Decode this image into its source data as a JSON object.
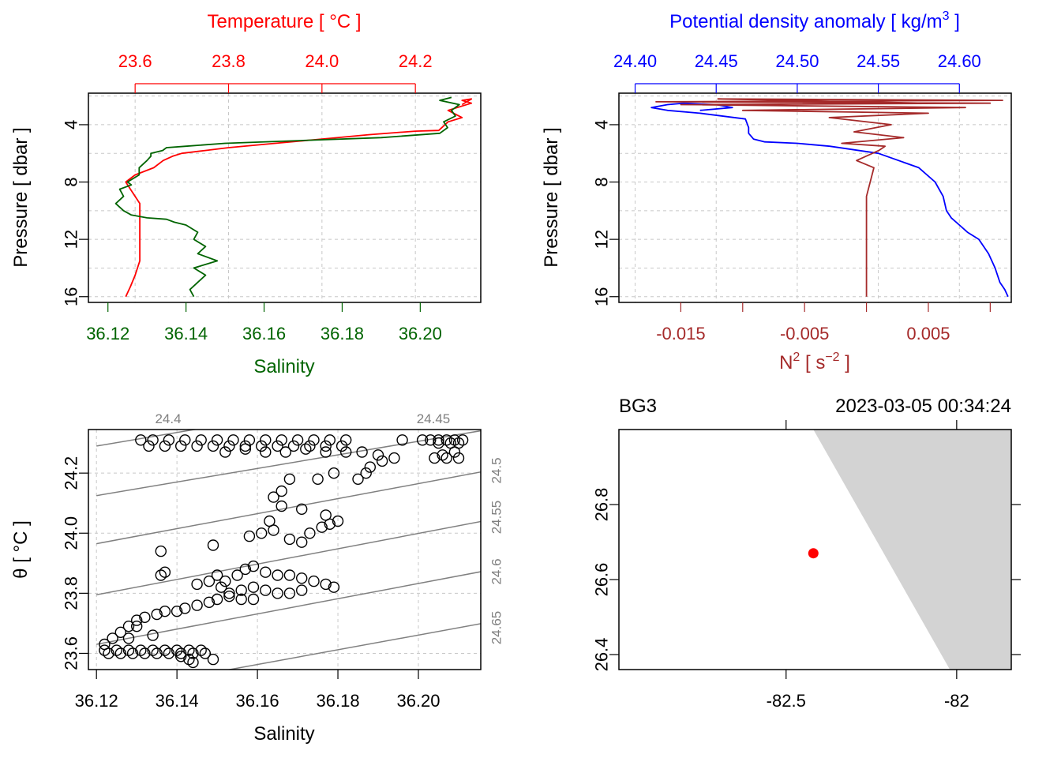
{
  "colors": {
    "temperature": "#ff0000",
    "salinity": "#006400",
    "density": "#0000ff",
    "n2": "#a52a2a",
    "land": "#d3d3d3",
    "station": "#ff0000",
    "isopycnal": "#808080"
  },
  "chart_data": [
    {
      "type": "line",
      "panel": "top-left",
      "ylabel": "Pressure [ dbar ]",
      "ylim": [
        16.4,
        1.8
      ],
      "yticks": [
        4,
        8,
        12,
        16
      ],
      "top_axis": {
        "label": "Temperature [ °C ]",
        "range": [
          23.5,
          24.34
        ],
        "ticks": [
          23.6,
          23.8,
          24.0,
          24.2
        ],
        "tick_labels": [
          "23.6",
          "23.8",
          "24.0",
          "24.2"
        ]
      },
      "bottom_axis": {
        "label": "Salinity",
        "range": [
          36.115,
          36.2155
        ],
        "ticks": [
          36.12,
          36.14,
          36.16,
          36.18,
          36.2
        ],
        "tick_labels": [
          "36.12",
          "36.14",
          "36.16",
          "36.18",
          "36.20"
        ]
      },
      "series": [
        {
          "name": "Temperature",
          "x": [
            23.58,
            23.59,
            23.6,
            23.61,
            23.61,
            23.61,
            23.61,
            23.61,
            23.61,
            23.6,
            23.59,
            23.58,
            23.6,
            23.64,
            23.66,
            23.68,
            23.7,
            23.75,
            23.8,
            23.9,
            24.0,
            24.1,
            24.2,
            24.25,
            24.27,
            24.3,
            24.27,
            24.3,
            24.32,
            24.3,
            24.32,
            24.3
          ],
          "y": [
            16,
            15.3,
            14.5,
            13.5,
            12.5,
            11.5,
            10.5,
            10,
            9.5,
            9,
            8.5,
            8,
            7.5,
            7,
            6.5,
            6.2,
            6,
            5.8,
            5.6,
            5.3,
            5.0,
            4.7,
            4.45,
            4.4,
            3.8,
            3.5,
            3.0,
            2.7,
            2.5,
            2.3,
            2.2,
            2.6
          ]
        },
        {
          "name": "Salinity",
          "x": [
            36.142,
            36.141,
            36.143,
            36.145,
            36.142,
            36.148,
            36.143,
            36.145,
            36.142,
            36.143,
            36.14,
            36.137,
            36.135,
            36.13,
            36.126,
            36.124,
            36.122,
            36.124,
            36.123,
            36.126,
            36.125,
            36.128,
            36.128,
            36.13,
            36.131,
            36.131,
            36.134,
            36.135,
            36.14,
            36.15,
            36.17,
            36.19,
            36.205,
            36.207,
            36.206,
            36.209,
            36.208,
            36.21,
            36.205,
            36.208
          ],
          "y": [
            16,
            15.5,
            15,
            14.5,
            14,
            13.5,
            13,
            12.5,
            12,
            11.5,
            11,
            10.8,
            10.6,
            10.5,
            10.3,
            10,
            9.5,
            9,
            8.5,
            8.2,
            8,
            7.5,
            7,
            6.5,
            6.2,
            6,
            5.8,
            5.6,
            5.5,
            5.3,
            5.1,
            4.9,
            4.6,
            4.2,
            3.8,
            3.4,
            3.0,
            2.6,
            2.3,
            2.1
          ]
        }
      ]
    },
    {
      "type": "line",
      "panel": "top-right",
      "ylabel": "Pressure [ dbar ]",
      "ylim": [
        16.4,
        1.8
      ],
      "yticks": [
        4,
        8,
        12,
        16
      ],
      "top_axis": {
        "label": "Potential density anomaly [ kg/m",
        "label_sup": "3",
        "label_end": " ]",
        "range": [
          24.39,
          24.632
        ],
        "ticks": [
          24.4,
          24.45,
          24.5,
          24.55,
          24.6
        ],
        "tick_labels": [
          "24.40",
          "24.45",
          "24.50",
          "24.55",
          "24.60"
        ]
      },
      "bottom_axis": {
        "label": "N",
        "label_sup": "2",
        "label_mid": " [ s",
        "label_sup2": "−2",
        "label_end": " ]",
        "range": [
          -0.02,
          0.0117
        ],
        "ticks": [
          -0.015,
          -0.01,
          -0.005,
          0,
          0.005,
          0.01
        ],
        "tick_labels": [
          "-0.015",
          "",
          "-0.005",
          "",
          "0.005",
          ""
        ]
      },
      "series": [
        {
          "name": "Potential density anomaly",
          "x": [
            24.63,
            24.628,
            24.625,
            24.622,
            24.618,
            24.612,
            24.605,
            24.6,
            24.595,
            24.592,
            24.59,
            24.585,
            24.575,
            24.55,
            24.52,
            24.5,
            24.48,
            24.473,
            24.47,
            24.47,
            24.468,
            24.44,
            24.42,
            24.41,
            24.42,
            24.43,
            24.45,
            24.46,
            24.44
          ],
          "y": [
            16,
            15.5,
            15,
            14,
            13,
            12,
            11.5,
            11,
            10.5,
            10,
            9,
            8,
            7,
            6,
            5.5,
            5.3,
            5.2,
            5.0,
            4.6,
            4.2,
            3.6,
            3.2,
            3.0,
            2.8,
            2.6,
            2.5,
            2.6,
            2.8,
            3.0
          ]
        },
        {
          "name": "N2",
          "x": [
            0,
            0,
            0,
            0,
            0,
            0,
            0,
            0,
            0.0006,
            -0.0008,
            0.001,
            0.0015,
            -0.002,
            0.003,
            -0.001,
            0.002,
            -0.003,
            0.005,
            -0.01,
            0.008,
            -0.015,
            0.01,
            -0.017,
            0.011,
            -0.012,
            0.005
          ],
          "y": [
            16,
            15,
            14,
            13,
            12,
            11,
            10,
            9,
            7,
            6.5,
            5.8,
            5.5,
            5.3,
            4.9,
            4.5,
            4.0,
            3.5,
            3.2,
            3.0,
            2.8,
            2.6,
            2.5,
            2.4,
            2.3,
            2.2,
            2.5
          ]
        }
      ]
    },
    {
      "type": "scatter",
      "panel": "bottom-left",
      "xlabel": "Salinity",
      "ylabel": "θ [ °C ]",
      "xlim": [
        36.118,
        36.2155
      ],
      "ylim": [
        23.546,
        24.345
      ],
      "xticks": [
        36.12,
        36.14,
        36.16,
        36.18,
        36.2
      ],
      "xtick_labels": [
        "36.12",
        "36.14",
        "36.16",
        "36.18",
        "36.20"
      ],
      "yticks": [
        23.6,
        23.8,
        24.0,
        24.2
      ],
      "ytick_labels": [
        "23.6",
        "23.8",
        "24.0",
        "24.2"
      ],
      "isopycnal_labels": [
        "24.4",
        "24.45",
        "24.5",
        "24.55",
        "24.6",
        "24.65"
      ],
      "isopycnals": [
        {
          "sigma": "24.4",
          "s0": 36.12,
          "t0": 24.29,
          "s1": 36.216,
          "t1": 24.507
        },
        {
          "sigma": "24.45",
          "s0": 36.12,
          "t0": 24.125,
          "s1": 36.216,
          "t1": 24.342
        },
        {
          "sigma": "24.5",
          "s0": 36.12,
          "t0": 23.965,
          "s1": 36.216,
          "t1": 24.205
        },
        {
          "sigma": "24.55",
          "s0": 36.12,
          "t0": 23.795,
          "s1": 36.216,
          "t1": 24.04
        },
        {
          "sigma": "24.6",
          "s0": 36.12,
          "t0": 23.63,
          "s1": 36.216,
          "t1": 23.873
        },
        {
          "sigma": "24.65",
          "s0": 36.12,
          "t0": 23.465,
          "s1": 36.216,
          "t1": 23.7
        }
      ],
      "points": [
        [
          36.131,
          24.31
        ],
        [
          36.134,
          24.31
        ],
        [
          36.138,
          24.31
        ],
        [
          36.142,
          24.31
        ],
        [
          36.146,
          24.31
        ],
        [
          36.15,
          24.31
        ],
        [
          36.154,
          24.31
        ],
        [
          36.158,
          24.31
        ],
        [
          36.162,
          24.31
        ],
        [
          36.166,
          24.31
        ],
        [
          36.17,
          24.31
        ],
        [
          36.174,
          24.31
        ],
        [
          36.178,
          24.31
        ],
        [
          36.182,
          24.31
        ],
        [
          36.133,
          24.29
        ],
        [
          36.137,
          24.29
        ],
        [
          36.141,
          24.29
        ],
        [
          36.145,
          24.29
        ],
        [
          36.149,
          24.29
        ],
        [
          36.153,
          24.29
        ],
        [
          36.157,
          24.29
        ],
        [
          36.161,
          24.29
        ],
        [
          36.165,
          24.29
        ],
        [
          36.169,
          24.29
        ],
        [
          36.173,
          24.29
        ],
        [
          36.177,
          24.29
        ],
        [
          36.181,
          24.29
        ],
        [
          36.152,
          24.27
        ],
        [
          36.157,
          24.28
        ],
        [
          36.162,
          24.27
        ],
        [
          36.167,
          24.27
        ],
        [
          36.172,
          24.28
        ],
        [
          36.177,
          24.27
        ],
        [
          36.182,
          24.27
        ],
        [
          36.186,
          24.27
        ],
        [
          36.19,
          24.26
        ],
        [
          36.194,
          24.25
        ],
        [
          36.196,
          24.31
        ],
        [
          36.201,
          24.31
        ],
        [
          36.203,
          24.31
        ],
        [
          36.205,
          24.31
        ],
        [
          36.207,
          24.31
        ],
        [
          36.209,
          24.31
        ],
        [
          36.211,
          24.31
        ],
        [
          36.205,
          24.3
        ],
        [
          36.208,
          24.3
        ],
        [
          36.21,
          24.3
        ],
        [
          36.204,
          24.25
        ],
        [
          36.207,
          24.25
        ],
        [
          36.21,
          24.25
        ],
        [
          36.206,
          24.26
        ],
        [
          36.209,
          24.27
        ],
        [
          36.191,
          24.24
        ],
        [
          36.188,
          24.22
        ],
        [
          36.187,
          24.2
        ],
        [
          36.185,
          24.18
        ],
        [
          36.179,
          24.2
        ],
        [
          36.175,
          24.18
        ],
        [
          36.168,
          24.18
        ],
        [
          36.166,
          24.14
        ],
        [
          36.164,
          24.12
        ],
        [
          36.166,
          24.09
        ],
        [
          36.171,
          24.08
        ],
        [
          36.163,
          24.04
        ],
        [
          36.164,
          24.01
        ],
        [
          36.161,
          24.0
        ],
        [
          36.158,
          23.99
        ],
        [
          36.168,
          23.98
        ],
        [
          36.171,
          23.97
        ],
        [
          36.173,
          24.0
        ],
        [
          36.176,
          24.02
        ],
        [
          36.178,
          24.03
        ],
        [
          36.18,
          24.04
        ],
        [
          36.177,
          24.06
        ],
        [
          36.136,
          23.94
        ],
        [
          36.149,
          23.96
        ],
        [
          36.136,
          23.86
        ],
        [
          36.137,
          23.87
        ],
        [
          36.15,
          23.86
        ],
        [
          36.152,
          23.84
        ],
        [
          36.155,
          23.86
        ],
        [
          36.157,
          23.88
        ],
        [
          36.159,
          23.89
        ],
        [
          36.162,
          23.87
        ],
        [
          36.165,
          23.86
        ],
        [
          36.168,
          23.86
        ],
        [
          36.171,
          23.85
        ],
        [
          36.174,
          23.84
        ],
        [
          36.177,
          23.83
        ],
        [
          36.179,
          23.82
        ],
        [
          36.145,
          23.83
        ],
        [
          36.148,
          23.84
        ],
        [
          36.151,
          23.82
        ],
        [
          36.153,
          23.8
        ],
        [
          36.156,
          23.81
        ],
        [
          36.159,
          23.82
        ],
        [
          36.162,
          23.81
        ],
        [
          36.165,
          23.8
        ],
        [
          36.168,
          23.8
        ],
        [
          36.171,
          23.81
        ],
        [
          36.15,
          23.78
        ],
        [
          36.153,
          23.79
        ],
        [
          36.156,
          23.78
        ],
        [
          36.159,
          23.78
        ],
        [
          36.148,
          23.77
        ],
        [
          36.145,
          23.76
        ],
        [
          36.142,
          23.75
        ],
        [
          36.14,
          23.74
        ],
        [
          36.137,
          23.74
        ],
        [
          36.135,
          23.73
        ],
        [
          36.132,
          23.72
        ],
        [
          36.13,
          23.71
        ],
        [
          36.128,
          23.69
        ],
        [
          36.126,
          23.67
        ],
        [
          36.124,
          23.65
        ],
        [
          36.122,
          23.63
        ],
        [
          36.13,
          23.69
        ],
        [
          36.134,
          23.66
        ],
        [
          36.128,
          23.65
        ],
        [
          36.122,
          23.61
        ],
        [
          36.125,
          23.61
        ],
        [
          36.128,
          23.61
        ],
        [
          36.131,
          23.61
        ],
        [
          36.134,
          23.61
        ],
        [
          36.137,
          23.61
        ],
        [
          36.14,
          23.61
        ],
        [
          36.143,
          23.61
        ],
        [
          36.146,
          23.61
        ],
        [
          36.123,
          23.6
        ],
        [
          36.126,
          23.6
        ],
        [
          36.129,
          23.6
        ],
        [
          36.132,
          23.6
        ],
        [
          36.135,
          23.6
        ],
        [
          36.138,
          23.6
        ],
        [
          36.141,
          23.6
        ],
        [
          36.144,
          23.6
        ],
        [
          36.147,
          23.6
        ],
        [
          36.141,
          23.59
        ],
        [
          36.143,
          23.58
        ],
        [
          36.144,
          23.57
        ],
        [
          36.149,
          23.58
        ]
      ]
    },
    {
      "type": "map",
      "panel": "bottom-right",
      "station": "BG3",
      "datetime": "2023-03-05 00:34:24",
      "xlim": [
        -82.99,
        -81.84
      ],
      "ylim": [
        26.36,
        27.0
      ],
      "xticks": [
        -82.5,
        -82
      ],
      "xtick_labels": [
        "-82.5",
        "-82"
      ],
      "yticks": [
        26.4,
        26.6,
        26.8
      ],
      "ytick_labels": [
        "26.4",
        "26.6",
        "26.8"
      ],
      "station_position": {
        "lon": -82.42,
        "lat": 26.67
      },
      "land": [
        [
          -82.42,
          27.0
        ],
        [
          -81.84,
          27.0
        ],
        [
          -81.84,
          26.36
        ],
        [
          -82.02,
          26.36
        ]
      ]
    }
  ]
}
